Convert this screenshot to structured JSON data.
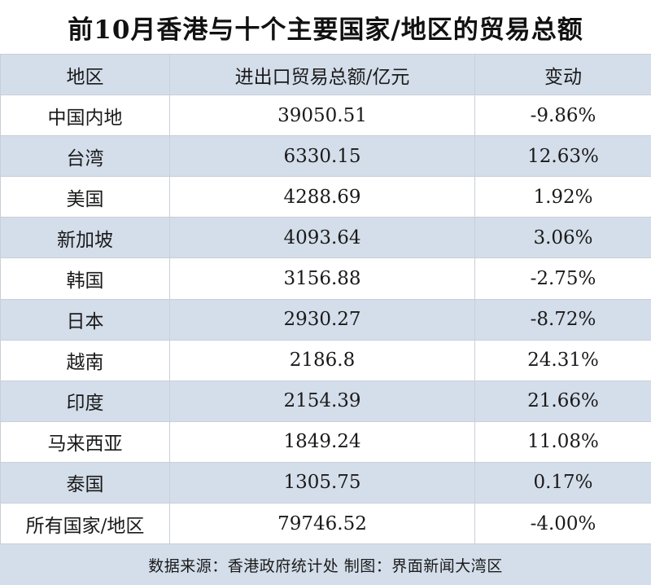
{
  "title": "前10月香港与十个主要国家/地区的贸易总额",
  "colors": {
    "header_bg": "#d4deea",
    "alt_row_bg": "#d4deea",
    "row_bg": "#ffffff",
    "border": "#c9cfd8"
  },
  "chart_data": {
    "type": "table",
    "title": "前10月香港与十个主要国家/地区的贸易总额",
    "columns": [
      "地区",
      "进出口贸易总额/亿元",
      "变动"
    ],
    "rows": [
      [
        "中国内地",
        "39050.51",
        "-9.86%"
      ],
      [
        "台湾",
        "6330.15",
        "12.63%"
      ],
      [
        "美国",
        "4288.69",
        "1.92%"
      ],
      [
        "新加坡",
        "4093.64",
        "3.06%"
      ],
      [
        "韩国",
        "3156.88",
        "-2.75%"
      ],
      [
        "日本",
        "2930.27",
        "-8.72%"
      ],
      [
        "越南",
        "2186.8",
        "24.31%"
      ],
      [
        "印度",
        "2154.39",
        "21.66%"
      ],
      [
        "马来西亚",
        "1849.24",
        "11.08%"
      ],
      [
        "泰国",
        "1305.75",
        "0.17%"
      ],
      [
        "所有国家/地区",
        "79746.52",
        "-4.00%"
      ]
    ]
  },
  "footer": "数据来源：香港政府统计处 制图：界面新闻大湾区"
}
